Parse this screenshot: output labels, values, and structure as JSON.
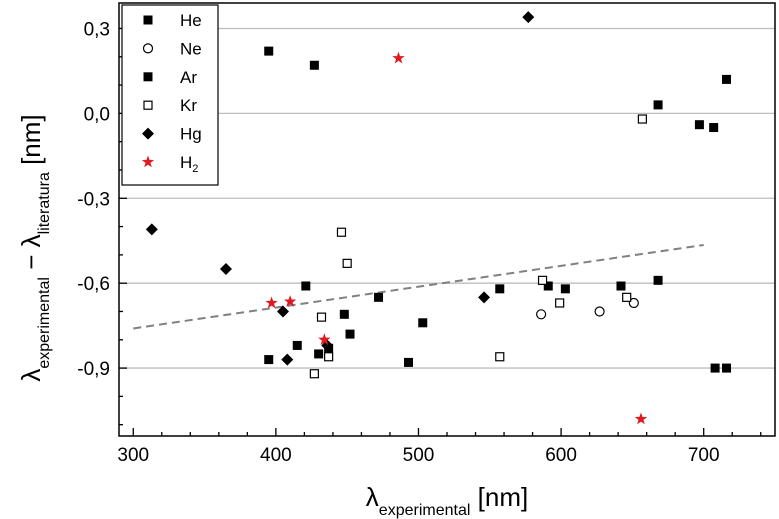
{
  "chart_data": {
    "type": "scatter",
    "title": "",
    "xlabel": {
      "main": "λ",
      "sub": "experimental",
      "unit": " [nm]"
    },
    "ylabel": {
      "main": "λ",
      "sub1": "experimental",
      "mid": " − λ",
      "sub2": "literatura",
      "unit": " [nm]"
    },
    "xlim": [
      290,
      750
    ],
    "ylim": [
      -1.14,
      0.39
    ],
    "x_ticks": [
      300,
      400,
      500,
      600,
      700
    ],
    "x_tick_labels": [
      "300",
      "400",
      "500",
      "600",
      "700"
    ],
    "y_ticks": [
      0.3,
      0.0,
      -0.3,
      -0.6,
      -0.9
    ],
    "y_tick_labels": [
      "0,3",
      "0,0",
      "-0,3",
      "-0,6",
      "-0,9"
    ],
    "grid": "horizontal",
    "legend_position": "top-left",
    "series": [
      {
        "name": "He",
        "label": "He",
        "marker": "square-filled",
        "color": "#000000",
        "x": [
          395,
          421,
          472,
          557,
          668
        ],
        "y": [
          0.22,
          -0.61,
          -0.65,
          -0.62,
          -0.59
        ]
      },
      {
        "name": "Ne",
        "label": "Ne",
        "marker": "circle-open",
        "color": "#000000",
        "x": [
          586,
          627,
          651
        ],
        "y": [
          -0.71,
          -0.7,
          -0.67
        ]
      },
      {
        "name": "Ar",
        "label": "Ar",
        "marker": "square-filled",
        "color": "#000000",
        "x": [
          395,
          415,
          427,
          430,
          437,
          448,
          452,
          493,
          503,
          591,
          603,
          642,
          668,
          697,
          707,
          708,
          716,
          716
        ],
        "y": [
          -0.87,
          -0.82,
          0.17,
          -0.85,
          -0.83,
          -0.71,
          -0.78,
          -0.88,
          -0.74,
          -0.61,
          -0.62,
          -0.61,
          0.03,
          -0.04,
          -0.05,
          -0.9,
          -0.9,
          0.12
        ]
      },
      {
        "name": "Kr",
        "label": "Kr",
        "marker": "square-open",
        "color": "#000000",
        "x": [
          427,
          432,
          437,
          446,
          450,
          557,
          587,
          599,
          646,
          657
        ],
        "y": [
          -0.92,
          -0.72,
          -0.86,
          -0.42,
          -0.53,
          -0.86,
          -0.59,
          -0.67,
          -0.65,
          -0.02
        ]
      },
      {
        "name": "Hg",
        "label": "Hg",
        "marker": "diamond-filled",
        "color": "#000000",
        "x": [
          313,
          365,
          405,
          408,
          436,
          546,
          577
        ],
        "y": [
          -0.41,
          -0.55,
          -0.7,
          -0.87,
          -0.82,
          -0.65,
          0.34
        ]
      },
      {
        "name": "H2",
        "label": "H",
        "label_sub": "2",
        "marker": "star",
        "color": "#e0191e",
        "x": [
          397,
          410,
          434,
          486,
          656
        ],
        "y": [
          -0.67,
          -0.665,
          -0.8,
          0.195,
          -1.08
        ]
      }
    ],
    "trend_line": {
      "style": "dashed",
      "color": "#808080",
      "x": [
        300,
        700
      ],
      "y": [
        -0.76,
        -0.465
      ]
    }
  }
}
